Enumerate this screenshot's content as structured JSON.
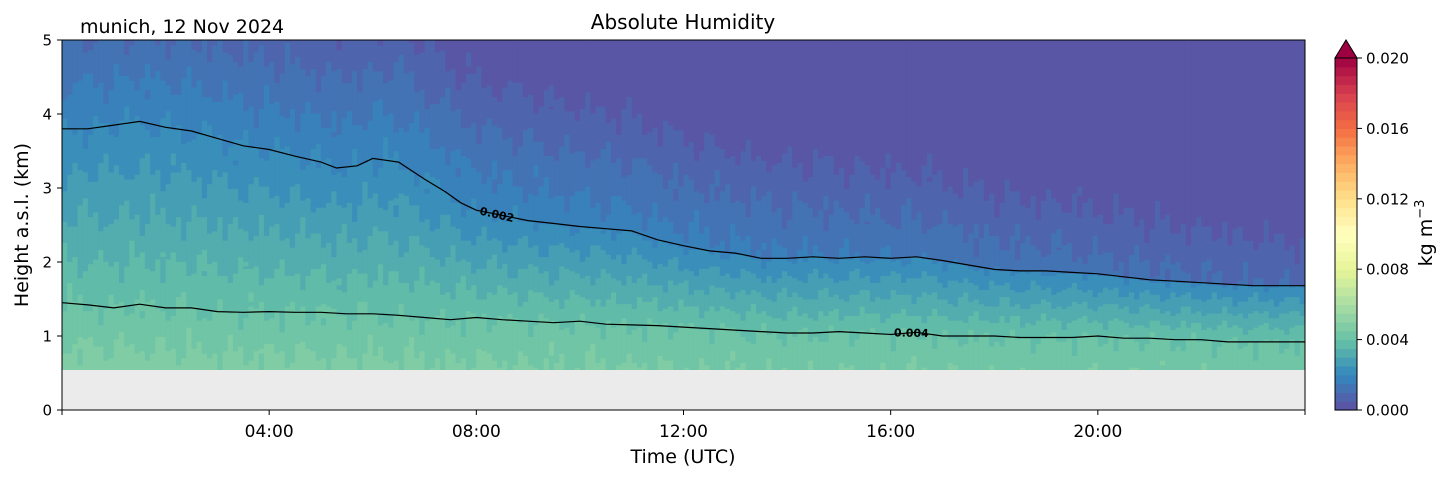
{
  "chart_data": {
    "type": "heatmap",
    "title": "Absolute Humidity",
    "subtitle": "munich, 12 Nov 2024",
    "xlabel": "Time (UTC)",
    "ylabel": "Height a.s.l. (km)",
    "colorbar_label": "kg m",
    "colorbar_label_exp": "−3",
    "x_range_hours": [
      0,
      24
    ],
    "ylim": [
      0,
      5
    ],
    "x_ticks": [
      {
        "h": 4,
        "label": "04:00"
      },
      {
        "h": 8,
        "label": "08:00"
      },
      {
        "h": 12,
        "label": "12:00"
      },
      {
        "h": 16,
        "label": "16:00"
      },
      {
        "h": 20,
        "label": "20:00"
      }
    ],
    "y_ticks": [
      {
        "v": 0,
        "label": "0"
      },
      {
        "v": 1,
        "label": "1"
      },
      {
        "v": 2,
        "label": "2"
      },
      {
        "v": 3,
        "label": "3"
      },
      {
        "v": 4,
        "label": "4"
      },
      {
        "v": 5,
        "label": "5"
      }
    ],
    "colorbar_range": [
      0.0,
      0.02
    ],
    "colorbar_extend": "max",
    "colorbar_ticks": [
      {
        "v": 0.0,
        "label": "0.000"
      },
      {
        "v": 0.004,
        "label": "0.004"
      },
      {
        "v": 0.008,
        "label": "0.008"
      },
      {
        "v": 0.012,
        "label": "0.012"
      },
      {
        "v": 0.016,
        "label": "0.016"
      },
      {
        "v": 0.02,
        "label": "0.020"
      }
    ],
    "data_height_range_km": [
      0.55,
      5.0
    ],
    "missing_color": "#ebebeb",
    "colormap": "Spectral_r",
    "contour_line_color": "#000000",
    "contours": [
      {
        "level": 0.002,
        "label": "0.002",
        "label_at_h": 8.4,
        "points": [
          [
            0.0,
            3.8
          ],
          [
            0.5,
            3.8
          ],
          [
            1.0,
            3.85
          ],
          [
            1.5,
            3.9
          ],
          [
            2.0,
            3.82
          ],
          [
            2.5,
            3.77
          ],
          [
            3.0,
            3.67
          ],
          [
            3.5,
            3.57
          ],
          [
            4.0,
            3.52
          ],
          [
            4.5,
            3.43
          ],
          [
            5.0,
            3.35
          ],
          [
            5.3,
            3.27
          ],
          [
            5.7,
            3.3
          ],
          [
            6.0,
            3.4
          ],
          [
            6.5,
            3.35
          ],
          [
            7.0,
            3.12
          ],
          [
            7.4,
            2.95
          ],
          [
            7.7,
            2.8
          ],
          [
            8.0,
            2.7
          ],
          [
            8.5,
            2.63
          ],
          [
            9.0,
            2.56
          ],
          [
            9.5,
            2.52
          ],
          [
            10.0,
            2.48
          ],
          [
            10.5,
            2.45
          ],
          [
            11.0,
            2.42
          ],
          [
            11.5,
            2.3
          ],
          [
            12.0,
            2.22
          ],
          [
            12.5,
            2.15
          ],
          [
            13.0,
            2.12
          ],
          [
            13.5,
            2.05
          ],
          [
            14.0,
            2.05
          ],
          [
            14.5,
            2.07
          ],
          [
            15.0,
            2.05
          ],
          [
            15.5,
            2.07
          ],
          [
            16.0,
            2.05
          ],
          [
            16.5,
            2.07
          ],
          [
            17.0,
            2.02
          ],
          [
            17.5,
            1.96
          ],
          [
            18.0,
            1.9
          ],
          [
            18.5,
            1.88
          ],
          [
            19.0,
            1.88
          ],
          [
            19.5,
            1.86
          ],
          [
            20.0,
            1.84
          ],
          [
            20.5,
            1.8
          ],
          [
            21.0,
            1.76
          ],
          [
            21.5,
            1.74
          ],
          [
            22.0,
            1.72
          ],
          [
            22.5,
            1.7
          ],
          [
            23.0,
            1.68
          ],
          [
            23.5,
            1.68
          ],
          [
            24.0,
            1.68
          ]
        ]
      },
      {
        "level": 0.004,
        "label": "0.004",
        "label_at_h": 16.4,
        "points": [
          [
            0.0,
            1.45
          ],
          [
            0.5,
            1.42
          ],
          [
            1.0,
            1.38
          ],
          [
            1.5,
            1.43
          ],
          [
            2.0,
            1.38
          ],
          [
            2.5,
            1.38
          ],
          [
            3.0,
            1.33
          ],
          [
            3.5,
            1.32
          ],
          [
            4.0,
            1.33
          ],
          [
            4.5,
            1.32
          ],
          [
            5.0,
            1.32
          ],
          [
            5.5,
            1.3
          ],
          [
            6.0,
            1.3
          ],
          [
            6.5,
            1.28
          ],
          [
            7.0,
            1.25
          ],
          [
            7.5,
            1.22
          ],
          [
            8.0,
            1.25
          ],
          [
            8.5,
            1.22
          ],
          [
            9.0,
            1.2
          ],
          [
            9.5,
            1.18
          ],
          [
            10.0,
            1.2
          ],
          [
            10.5,
            1.16
          ],
          [
            11.0,
            1.15
          ],
          [
            11.5,
            1.14
          ],
          [
            12.0,
            1.12
          ],
          [
            12.5,
            1.1
          ],
          [
            13.0,
            1.08
          ],
          [
            13.5,
            1.06
          ],
          [
            14.0,
            1.04
          ],
          [
            14.5,
            1.04
          ],
          [
            15.0,
            1.06
          ],
          [
            15.5,
            1.04
          ],
          [
            16.0,
            1.02
          ],
          [
            16.5,
            1.05
          ],
          [
            17.0,
            1.0
          ],
          [
            17.5,
            1.0
          ],
          [
            18.0,
            1.0
          ],
          [
            18.5,
            0.98
          ],
          [
            19.0,
            0.98
          ],
          [
            19.5,
            0.98
          ],
          [
            20.0,
            1.0
          ],
          [
            20.5,
            0.97
          ],
          [
            21.0,
            0.97
          ],
          [
            21.5,
            0.95
          ],
          [
            22.0,
            0.95
          ],
          [
            22.5,
            0.92
          ],
          [
            23.0,
            0.92
          ],
          [
            23.5,
            0.92
          ],
          [
            24.0,
            0.92
          ]
        ]
      }
    ]
  }
}
